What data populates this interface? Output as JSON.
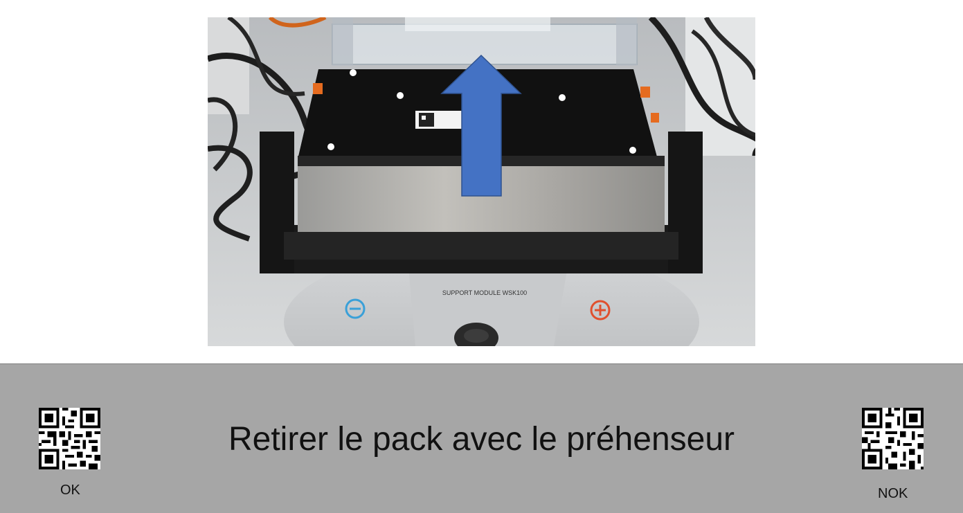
{
  "instruction": {
    "text": "Retirer le pack avec le préhenseur"
  },
  "photo": {
    "fixture_label": "SUPPORT MODULE WSK100",
    "arrow_color": "#4472c4"
  },
  "scan_codes": {
    "ok_label": "OK",
    "nok_label": "NOK"
  },
  "colors": {
    "panel_bg": "#a6a6a6",
    "negative_terminal": "#3aa0d8",
    "positive_terminal": "#e0502e"
  }
}
